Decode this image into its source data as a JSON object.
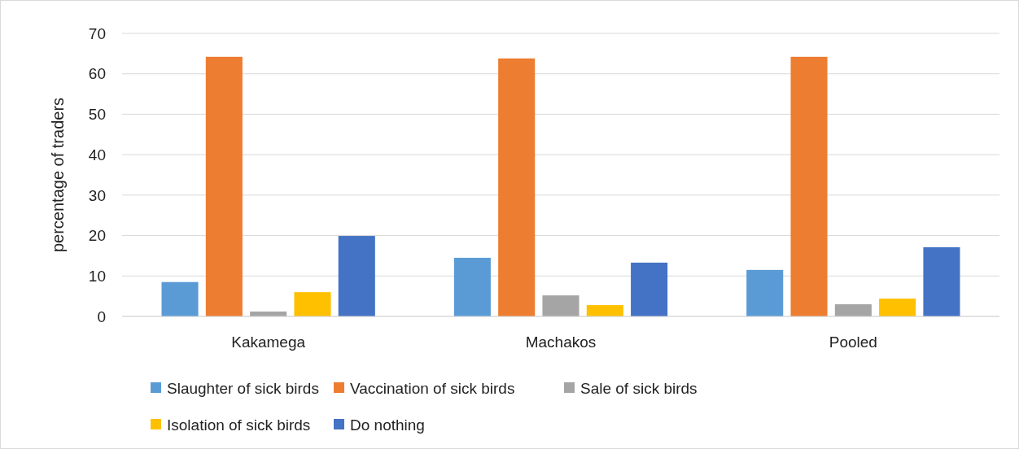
{
  "chart_data": {
    "type": "bar",
    "ylabel": "percentage of traders",
    "categories": [
      "Kakamega",
      "Machakos",
      "Pooled"
    ],
    "series": [
      {
        "name": "Slaughter of sick birds",
        "color": "#5b9bd5",
        "values": [
          8.5,
          14.5,
          11.5
        ]
      },
      {
        "name": "Vaccination of sick birds",
        "color": "#ed7d31",
        "values": [
          64.2,
          63.8,
          64.2
        ]
      },
      {
        "name": "Sale of sick birds",
        "color": "#a5a5a5",
        "values": [
          1.2,
          5.2,
          3.0
        ]
      },
      {
        "name": "Isolation of sick birds",
        "color": "#ffc000",
        "values": [
          6.0,
          2.8,
          4.4
        ]
      },
      {
        "name": "Do nothing",
        "color": "#4472c4",
        "values": [
          19.9,
          13.3,
          17.1
        ]
      }
    ],
    "ylim": [
      0,
      70
    ],
    "yticks": [
      0,
      10,
      20,
      30,
      40,
      50,
      60,
      70
    ],
    "grid": "y",
    "legend": "bottom"
  }
}
